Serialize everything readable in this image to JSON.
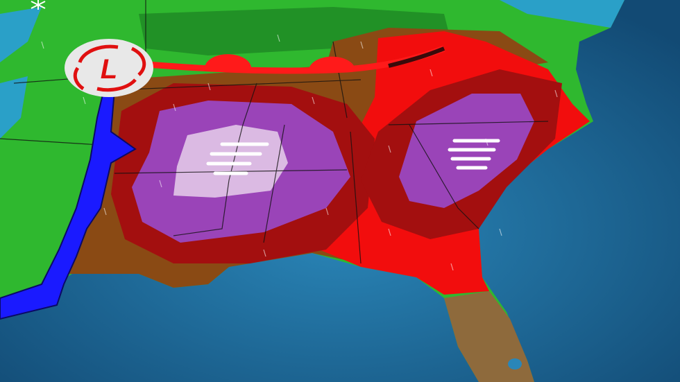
{
  "map": {
    "low_pressure_label": "L",
    "icons": [
      "snowflake-icon",
      "low-pressure-icon",
      "cold-front",
      "warm-front",
      "rain-streaks",
      "wind-icon"
    ],
    "colors": {
      "ocean": "#1f6f9f",
      "green_rain": "#2fb82f",
      "dark_green": "#1f8a24",
      "brown_risk": "#8a4a14",
      "red_risk": "#f20d0d",
      "dark_red_risk": "#a30f0f",
      "purple_risk": "#9a44b8",
      "light_purple_risk": "#e2c8e8",
      "cold_front": "#1a1aff",
      "warm_front": "#ff1a1a"
    }
  }
}
